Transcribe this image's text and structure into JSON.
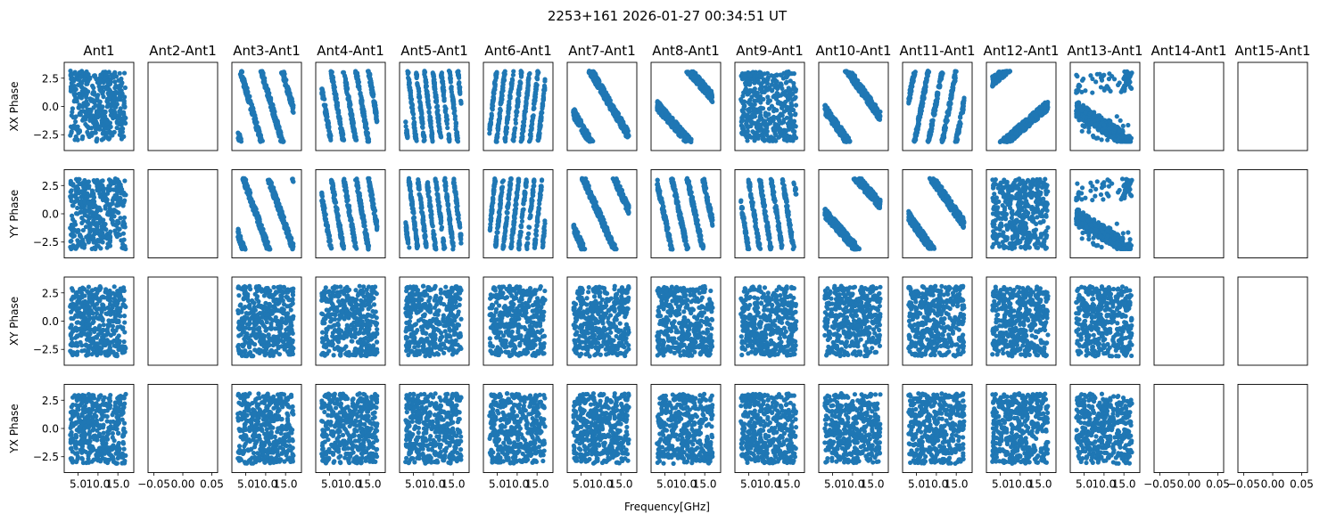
{
  "chart_data": {
    "type": "scatter",
    "title": "2253+161 2026-01-27 00:34:51 UT",
    "xlabel": "Frequency[GHz]",
    "row_labels": [
      "XX Phase",
      "YY Phase",
      "XY Phase",
      "YX Phase"
    ],
    "column_titles": [
      "Ant1",
      "Ant2-Ant1",
      "Ant3-Ant1",
      "Ant4-Ant1",
      "Ant5-Ant1",
      "Ant6-Ant1",
      "Ant7-Ant1",
      "Ant8-Ant1",
      "Ant9-Ant1",
      "Ant10-Ant1",
      "Ant11-Ant1",
      "Ant12-Ant1",
      "Ant13-Ant1",
      "Ant14-Ant1",
      "Ant15-Ant1"
    ],
    "ylim": [
      -3.9,
      3.9
    ],
    "xlim": [
      1.5,
      19.0
    ],
    "yticks": [
      2.5,
      0.0,
      -2.5
    ],
    "ytick_labels": [
      "2.5",
      "0.0",
      "−2.5"
    ],
    "xticks": [
      5.0,
      10.0,
      15.0
    ],
    "xtick_labels": [
      "5.0",
      "10.0",
      "15.0"
    ],
    "empty_xlim": [
      -0.06,
      0.06
    ],
    "empty_xticks": [
      -0.05,
      0.0,
      0.05
    ],
    "empty_xtick_labels": [
      "−0.05",
      "0.00",
      "0.05"
    ],
    "empty_columns": [
      1,
      13,
      14
    ],
    "empty_row0_col12": [],
    "panel_patterns": {
      "XX Phase": [
        "random-stripes",
        "empty",
        "slope:-1.2",
        "slope:-2.0",
        "slope:-3.0",
        "slope:3.0",
        "slope:-0.6",
        "slope:-0.4",
        "random",
        "slope:-0.5",
        "slope:1.8",
        "slope:0.3",
        "cluster-decreasing",
        "empty",
        "empty"
      ],
      "YY Phase": [
        "random-stripes",
        "empty",
        "slope:-1.0",
        "slope:-2.0",
        "slope:-2.8",
        "slope:3.2",
        "slope:-0.8",
        "slope:-1.6",
        "slope:-2.2",
        "slope:-0.4",
        "slope:-0.5",
        "random",
        "cluster-decreasing",
        "empty",
        "empty"
      ],
      "XY Phase": [
        "random",
        "empty",
        "random",
        "random",
        "random",
        "random",
        "random",
        "random",
        "random",
        "random",
        "random",
        "random",
        "random",
        "empty",
        "empty"
      ],
      "YX Phase": [
        "random",
        "empty",
        "random",
        "random",
        "random",
        "random",
        "random",
        "random",
        "random",
        "random",
        "random",
        "random",
        "random",
        "empty",
        "empty"
      ]
    },
    "marker_color": "#1f77b4",
    "grid": false,
    "legend": "none"
  }
}
